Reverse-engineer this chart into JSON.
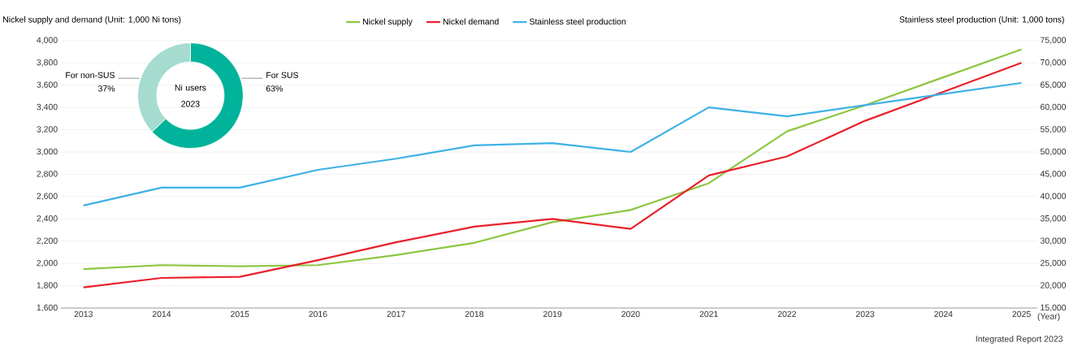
{
  "chart_data": [
    {
      "type": "line",
      "categories": [
        "2013",
        "2014",
        "2015",
        "2016",
        "2017",
        "2018",
        "2019",
        "2020",
        "2021",
        "2022",
        "2023",
        "2024",
        "2025"
      ],
      "series": [
        {
          "name": "Nickel supply",
          "color": "#8cc63f",
          "values": [
            1950,
            1985,
            1975,
            1985,
            2075,
            2185,
            2370,
            2480,
            2720,
            3185,
            3420,
            3670,
            3920
          ]
        },
        {
          "name": "Nickel demand",
          "color": "#e8202a",
          "values": [
            1785,
            1870,
            1880,
            2030,
            2190,
            2330,
            2400,
            2310,
            2790,
            2960,
            3280,
            3540,
            3800
          ]
        },
        {
          "name": "Stainless steel production",
          "color": "#3eb1e6",
          "axis": "y2",
          "values": [
            38000,
            42000,
            42000,
            46000,
            48500,
            51500,
            52000,
            50000,
            60000,
            58000,
            60500,
            63000,
            65500
          ]
        }
      ],
      "ylim": [
        1600,
        4000
      ],
      "yticks": [
        {
          "value": 1600,
          "label": "1,600"
        },
        {
          "value": 1800,
          "label": "1,800"
        },
        {
          "value": 2000,
          "label": "2,000"
        },
        {
          "value": 2200,
          "label": "2,200"
        },
        {
          "value": 2400,
          "label": "2,400"
        },
        {
          "value": 2600,
          "label": "2,600"
        },
        {
          "value": 2800,
          "label": "2,800"
        },
        {
          "value": 3000,
          "label": "3,000"
        },
        {
          "value": 3200,
          "label": "3,200"
        },
        {
          "value": 3400,
          "label": "3,400"
        },
        {
          "value": 3600,
          "label": "3,600"
        },
        {
          "value": 3800,
          "label": "3,800"
        },
        {
          "value": 4000,
          "label": "4,000"
        }
      ],
      "y2lim": [
        15000,
        75000
      ],
      "y2ticks": [
        {
          "value": 15000,
          "label": "15,000"
        },
        {
          "value": 20000,
          "label": "20,000"
        },
        {
          "value": 25000,
          "label": "25,000"
        },
        {
          "value": 30000,
          "label": "30,000"
        },
        {
          "value": 35000,
          "label": "35,000"
        },
        {
          "value": 40000,
          "label": "40,000"
        },
        {
          "value": 45000,
          "label": "45,000"
        },
        {
          "value": 50000,
          "label": "50,000"
        },
        {
          "value": 55000,
          "label": "55,000"
        },
        {
          "value": 60000,
          "label": "60,000"
        },
        {
          "value": 65000,
          "label": "65,000"
        },
        {
          "value": 70000,
          "label": "70,000"
        },
        {
          "value": 75000,
          "label": "75,000"
        }
      ],
      "ylabel": "Nickel supply and demand (Unit: 1,000 Ni tons)",
      "y2label": "Stainless steel production (Unit: 1,000 tons)",
      "xlabel": "(Year)",
      "legend": "top",
      "grid": "y",
      "annotations": [
        "Integrated Report 2023"
      ]
    },
    {
      "type": "donut",
      "title": "Ni users 2023",
      "categories": [
        "For SUS",
        "For non-SUS"
      ],
      "values": [
        63,
        37
      ],
      "colors": [
        "#00b39a",
        "#a5dccf"
      ],
      "value_labels": [
        "63%",
        "37%"
      ]
    }
  ]
}
